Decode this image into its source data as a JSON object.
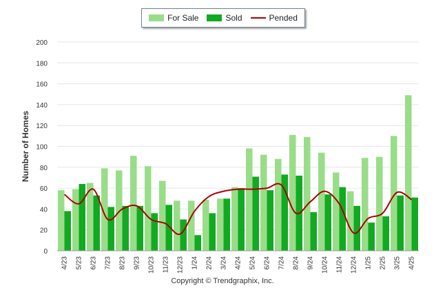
{
  "chart_data": {
    "type": "bar",
    "categories": [
      "4/23",
      "5/23",
      "6/23",
      "7/23",
      "8/23",
      "9/23",
      "10/23",
      "11/23",
      "12/23",
      "1/24",
      "2/24",
      "3/24",
      "4/24",
      "5/24",
      "6/24",
      "7/24",
      "8/24",
      "9/24",
      "10/24",
      "11/24",
      "12/24",
      "1/25",
      "2/25",
      "3/25",
      "4/25"
    ],
    "series": [
      {
        "name": "For Sale",
        "kind": "bar",
        "color": "#99dd88",
        "values": [
          58,
          59,
          65,
          79,
          77,
          91,
          81,
          67,
          48,
          48,
          49,
          50,
          61,
          98,
          92,
          88,
          111,
          109,
          94,
          75,
          57,
          89,
          90,
          110,
          149
        ]
      },
      {
        "name": "Sold",
        "kind": "bar",
        "color": "#11aa22",
        "values": [
          38,
          64,
          53,
          42,
          43,
          43,
          36,
          44,
          30,
          15,
          36,
          50,
          60,
          71,
          58,
          73,
          72,
          37,
          54,
          61,
          43,
          27,
          33,
          53,
          51
        ]
      },
      {
        "name": "Pended",
        "kind": "line",
        "color": "#aa0000",
        "values": [
          54,
          45,
          59,
          30,
          40,
          43,
          30,
          26,
          16,
          38,
          52,
          57,
          59,
          59,
          60,
          63,
          36,
          47,
          57,
          45,
          17,
          31,
          36,
          56,
          49
        ]
      }
    ],
    "ylabel": "Number of Homes",
    "xlabel": "",
    "ylim": [
      0,
      200
    ],
    "yticks": [
      0,
      20,
      40,
      60,
      80,
      100,
      120,
      140,
      160,
      180,
      200
    ],
    "grid": true,
    "legend_position": "top-center"
  },
  "legend": {
    "for_sale": "For Sale",
    "sold": "Sold",
    "pended": "Pended"
  },
  "footer": {
    "copyright": "Copyright © Trendgraphix, Inc."
  }
}
